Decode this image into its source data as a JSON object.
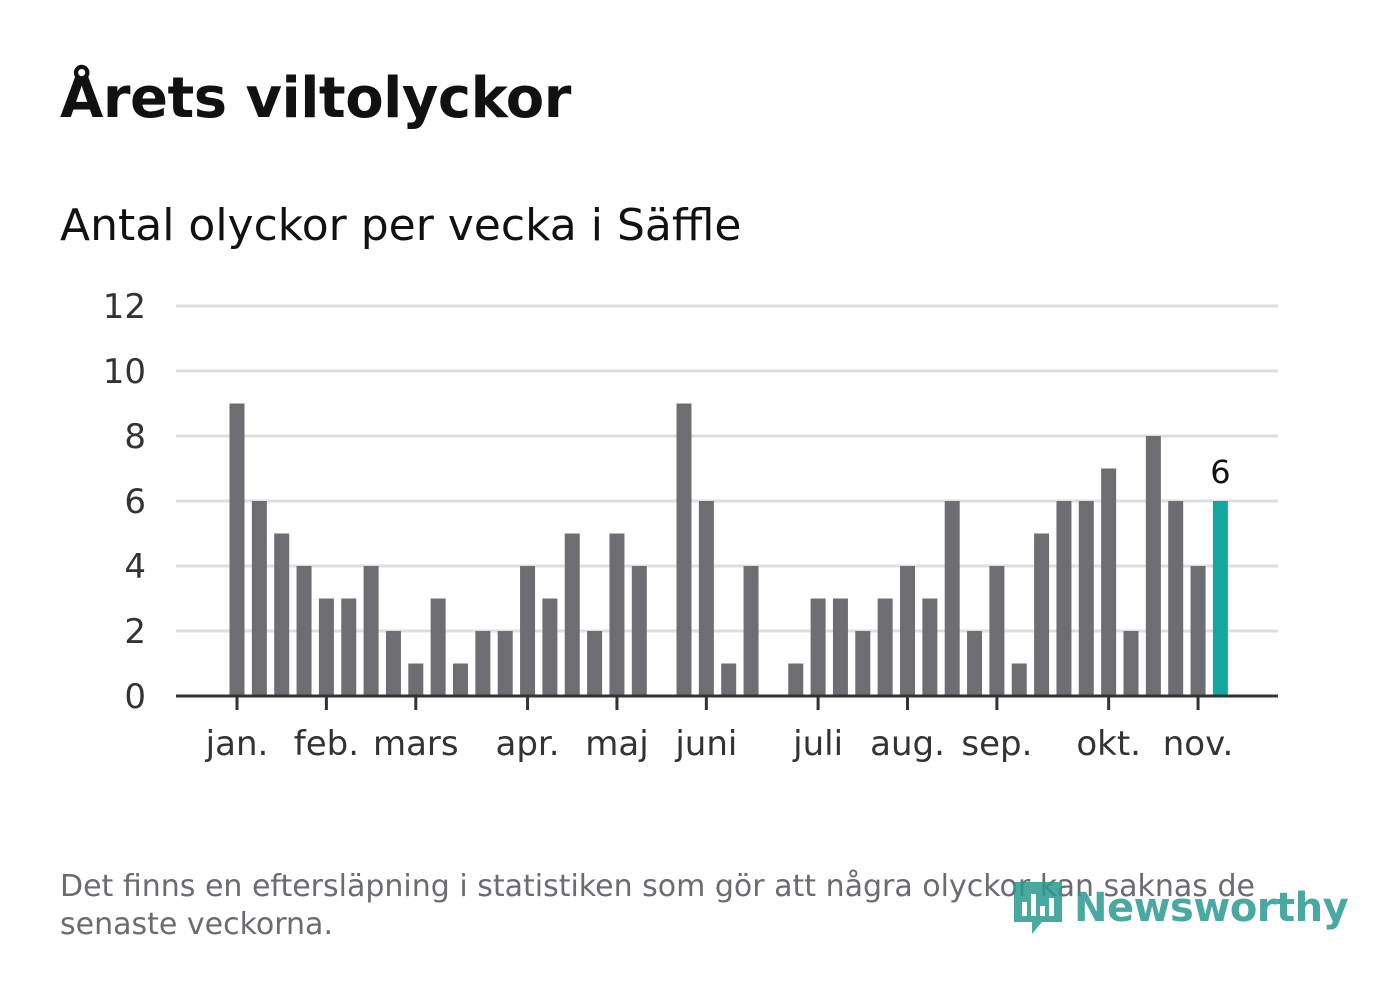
{
  "header": {
    "title": "Årets viltolyckor",
    "subtitle": "Antal olyckor per vecka i Säffle"
  },
  "footnote": "Det finns en eftersläpning i statistiken som gör att några olyckor kan saknas de senaste veckorna.",
  "brand": {
    "name": "Newsworthy"
  },
  "colors": {
    "bar": "#6e6d72",
    "highlight": "#13a89e",
    "grid": "#dedede",
    "axis": "#333333",
    "text": "#111111"
  },
  "chart_data": {
    "type": "bar",
    "title": "Antal olyckor per vecka i Säffle",
    "xlabel": "",
    "ylabel": "",
    "ylim": [
      0,
      12
    ],
    "yticks": [
      0,
      2,
      4,
      6,
      8,
      10,
      12
    ],
    "grid": true,
    "weeks": [
      1,
      2,
      3,
      4,
      5,
      6,
      7,
      8,
      9,
      10,
      11,
      12,
      13,
      14,
      15,
      16,
      17,
      18,
      19,
      20,
      21,
      22,
      23,
      24,
      25,
      26,
      27,
      28,
      29,
      30,
      31,
      32,
      33,
      34,
      35,
      36,
      37,
      38,
      39,
      40,
      41,
      42,
      43,
      44,
      45
    ],
    "values": [
      9,
      6,
      5,
      4,
      3,
      3,
      4,
      2,
      1,
      3,
      1,
      2,
      2,
      4,
      3,
      5,
      2,
      5,
      4,
      0,
      9,
      6,
      1,
      4,
      0,
      1,
      3,
      3,
      2,
      3,
      4,
      3,
      6,
      2,
      4,
      1,
      5,
      6,
      6,
      7,
      2,
      8,
      6,
      4,
      6
    ],
    "highlight_index": 44,
    "highlight_label": "6",
    "month_ticks": [
      {
        "label": "jan.",
        "week": 1
      },
      {
        "label": "feb.",
        "week": 5
      },
      {
        "label": "mars",
        "week": 9
      },
      {
        "label": "apr.",
        "week": 14
      },
      {
        "label": "maj",
        "week": 18
      },
      {
        "label": "juni",
        "week": 22
      },
      {
        "label": "juli",
        "week": 27
      },
      {
        "label": "aug.",
        "week": 31
      },
      {
        "label": "sep.",
        "week": 35
      },
      {
        "label": "okt.",
        "week": 40
      },
      {
        "label": "nov.",
        "week": 44
      }
    ]
  }
}
